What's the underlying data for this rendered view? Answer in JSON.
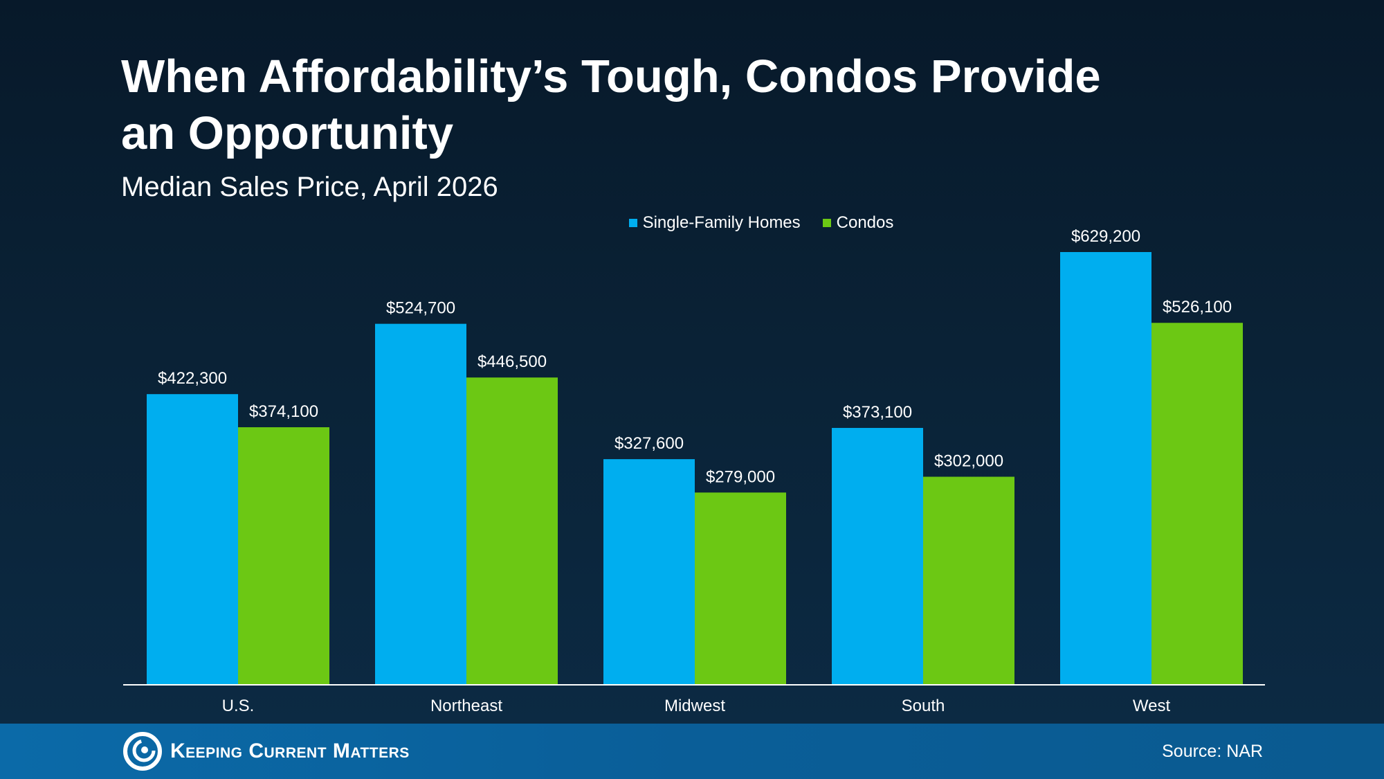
{
  "header": {
    "title": "When Affordability’s Tough, Condos Provide an Opportunity",
    "subtitle": "Median Sales Price, April 2026"
  },
  "footer": {
    "brand": "Keeping Current Matters",
    "source": "Source: NAR"
  },
  "colors": {
    "single_family": "#00aeef",
    "condos": "#6cc814",
    "background": "#0a2236",
    "footer": "#0b6aa8"
  },
  "chart_data": {
    "type": "bar",
    "title": "When Affordability’s Tough, Condos Provide an Opportunity",
    "subtitle": "Median Sales Price, April 2026",
    "categories": [
      "U.S.",
      "Northeast",
      "Midwest",
      "South",
      "West"
    ],
    "series": [
      {
        "name": "Single-Family Homes",
        "color": "#00aeef",
        "values": [
          422300,
          524700,
          327600,
          373100,
          629200
        ],
        "labels": [
          "$422,300",
          "$524,700",
          "$327,600",
          "$373,100",
          "$629,200"
        ]
      },
      {
        "name": "Condos",
        "color": "#6cc814",
        "values": [
          374100,
          446500,
          279000,
          302000,
          526100
        ],
        "labels": [
          "$374,100",
          "$446,500",
          "$279,000",
          "$302,000",
          "$526,100"
        ]
      }
    ],
    "ylim": [
      0,
      629200
    ],
    "grid": false,
    "legend_position": "top-center",
    "xlabel": "",
    "ylabel": ""
  }
}
